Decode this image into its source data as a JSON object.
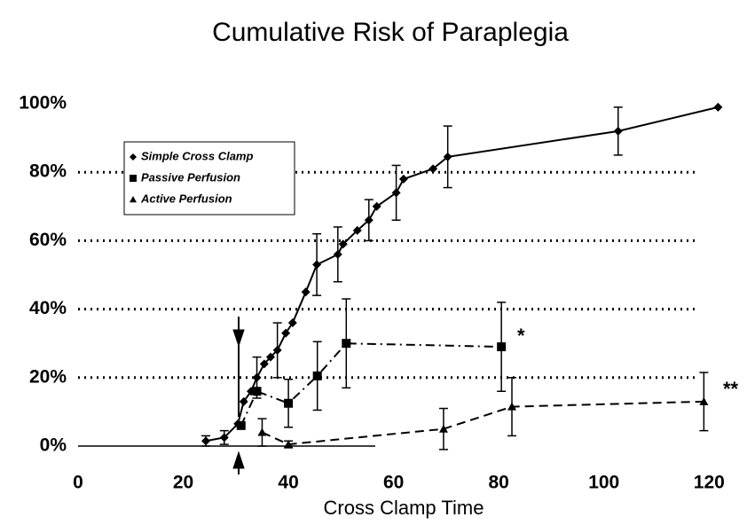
{
  "chart_data": {
    "type": "line",
    "title": "Cumulative Risk of Paraplegia",
    "x_label": "Cross Clamp Time",
    "xlim": [
      0,
      124
    ],
    "xticks": [
      0,
      20,
      40,
      60,
      80,
      100,
      120
    ],
    "ylim": [
      0,
      100
    ],
    "yticks": [
      {
        "value": 0,
        "label": "0%"
      },
      {
        "value": 20,
        "label": "20%"
      },
      {
        "value": 40,
        "label": "40%"
      },
      {
        "value": 60,
        "label": "60%"
      },
      {
        "value": 80,
        "label": "80%"
      },
      {
        "value": 100,
        "label": "100%"
      }
    ],
    "grid": true,
    "grid_style": "dotted",
    "legend": "upper left",
    "series": [
      {
        "name": "Simple Cross Clamp",
        "color": "#000000",
        "marker": "diamond",
        "line_style": "solid",
        "x": [
          24.3,
          27.8,
          30.4,
          31.5,
          32.9,
          34,
          35.4,
          36.6,
          37.9,
          39.5,
          40.8,
          43.3,
          45.4,
          49.4,
          50.4,
          53.1,
          55.3,
          56.8,
          60.5,
          61.9,
          67.5,
          70.3,
          102.7,
          121.7
        ],
        "values": [
          1.5,
          2.5,
          6.5,
          13,
          16,
          20,
          24,
          26,
          28,
          33,
          36,
          45,
          53,
          56,
          59,
          63,
          66,
          70,
          74,
          78,
          81,
          84.5,
          92,
          99
        ],
        "errors": [
          1.5,
          2,
          null,
          null,
          null,
          6,
          null,
          null,
          8,
          null,
          null,
          null,
          9,
          8,
          null,
          null,
          6,
          null,
          8,
          null,
          null,
          9,
          7,
          null
        ]
      },
      {
        "name": "Passive Perfusion",
        "color": "#000000",
        "marker": "square",
        "line_style": "dashdot",
        "x": [
          31,
          34,
          40,
          45.5,
          51,
          80.5
        ],
        "values": [
          6,
          16,
          12.5,
          20.5,
          30,
          29
        ],
        "errors": [
          null,
          null,
          7,
          10,
          13,
          13
        ]
      },
      {
        "name": "Active Perfusion",
        "color": "#000000",
        "marker": "triangle",
        "line_style": "dashed",
        "x": [
          35,
          40,
          69.5,
          82.5,
          119
        ],
        "values": [
          4,
          0.5,
          5,
          11.5,
          13
        ],
        "errors": [
          4,
          1,
          6,
          8.5,
          8.5
        ]
      }
    ],
    "annotations": [
      "*",
      "**"
    ]
  }
}
